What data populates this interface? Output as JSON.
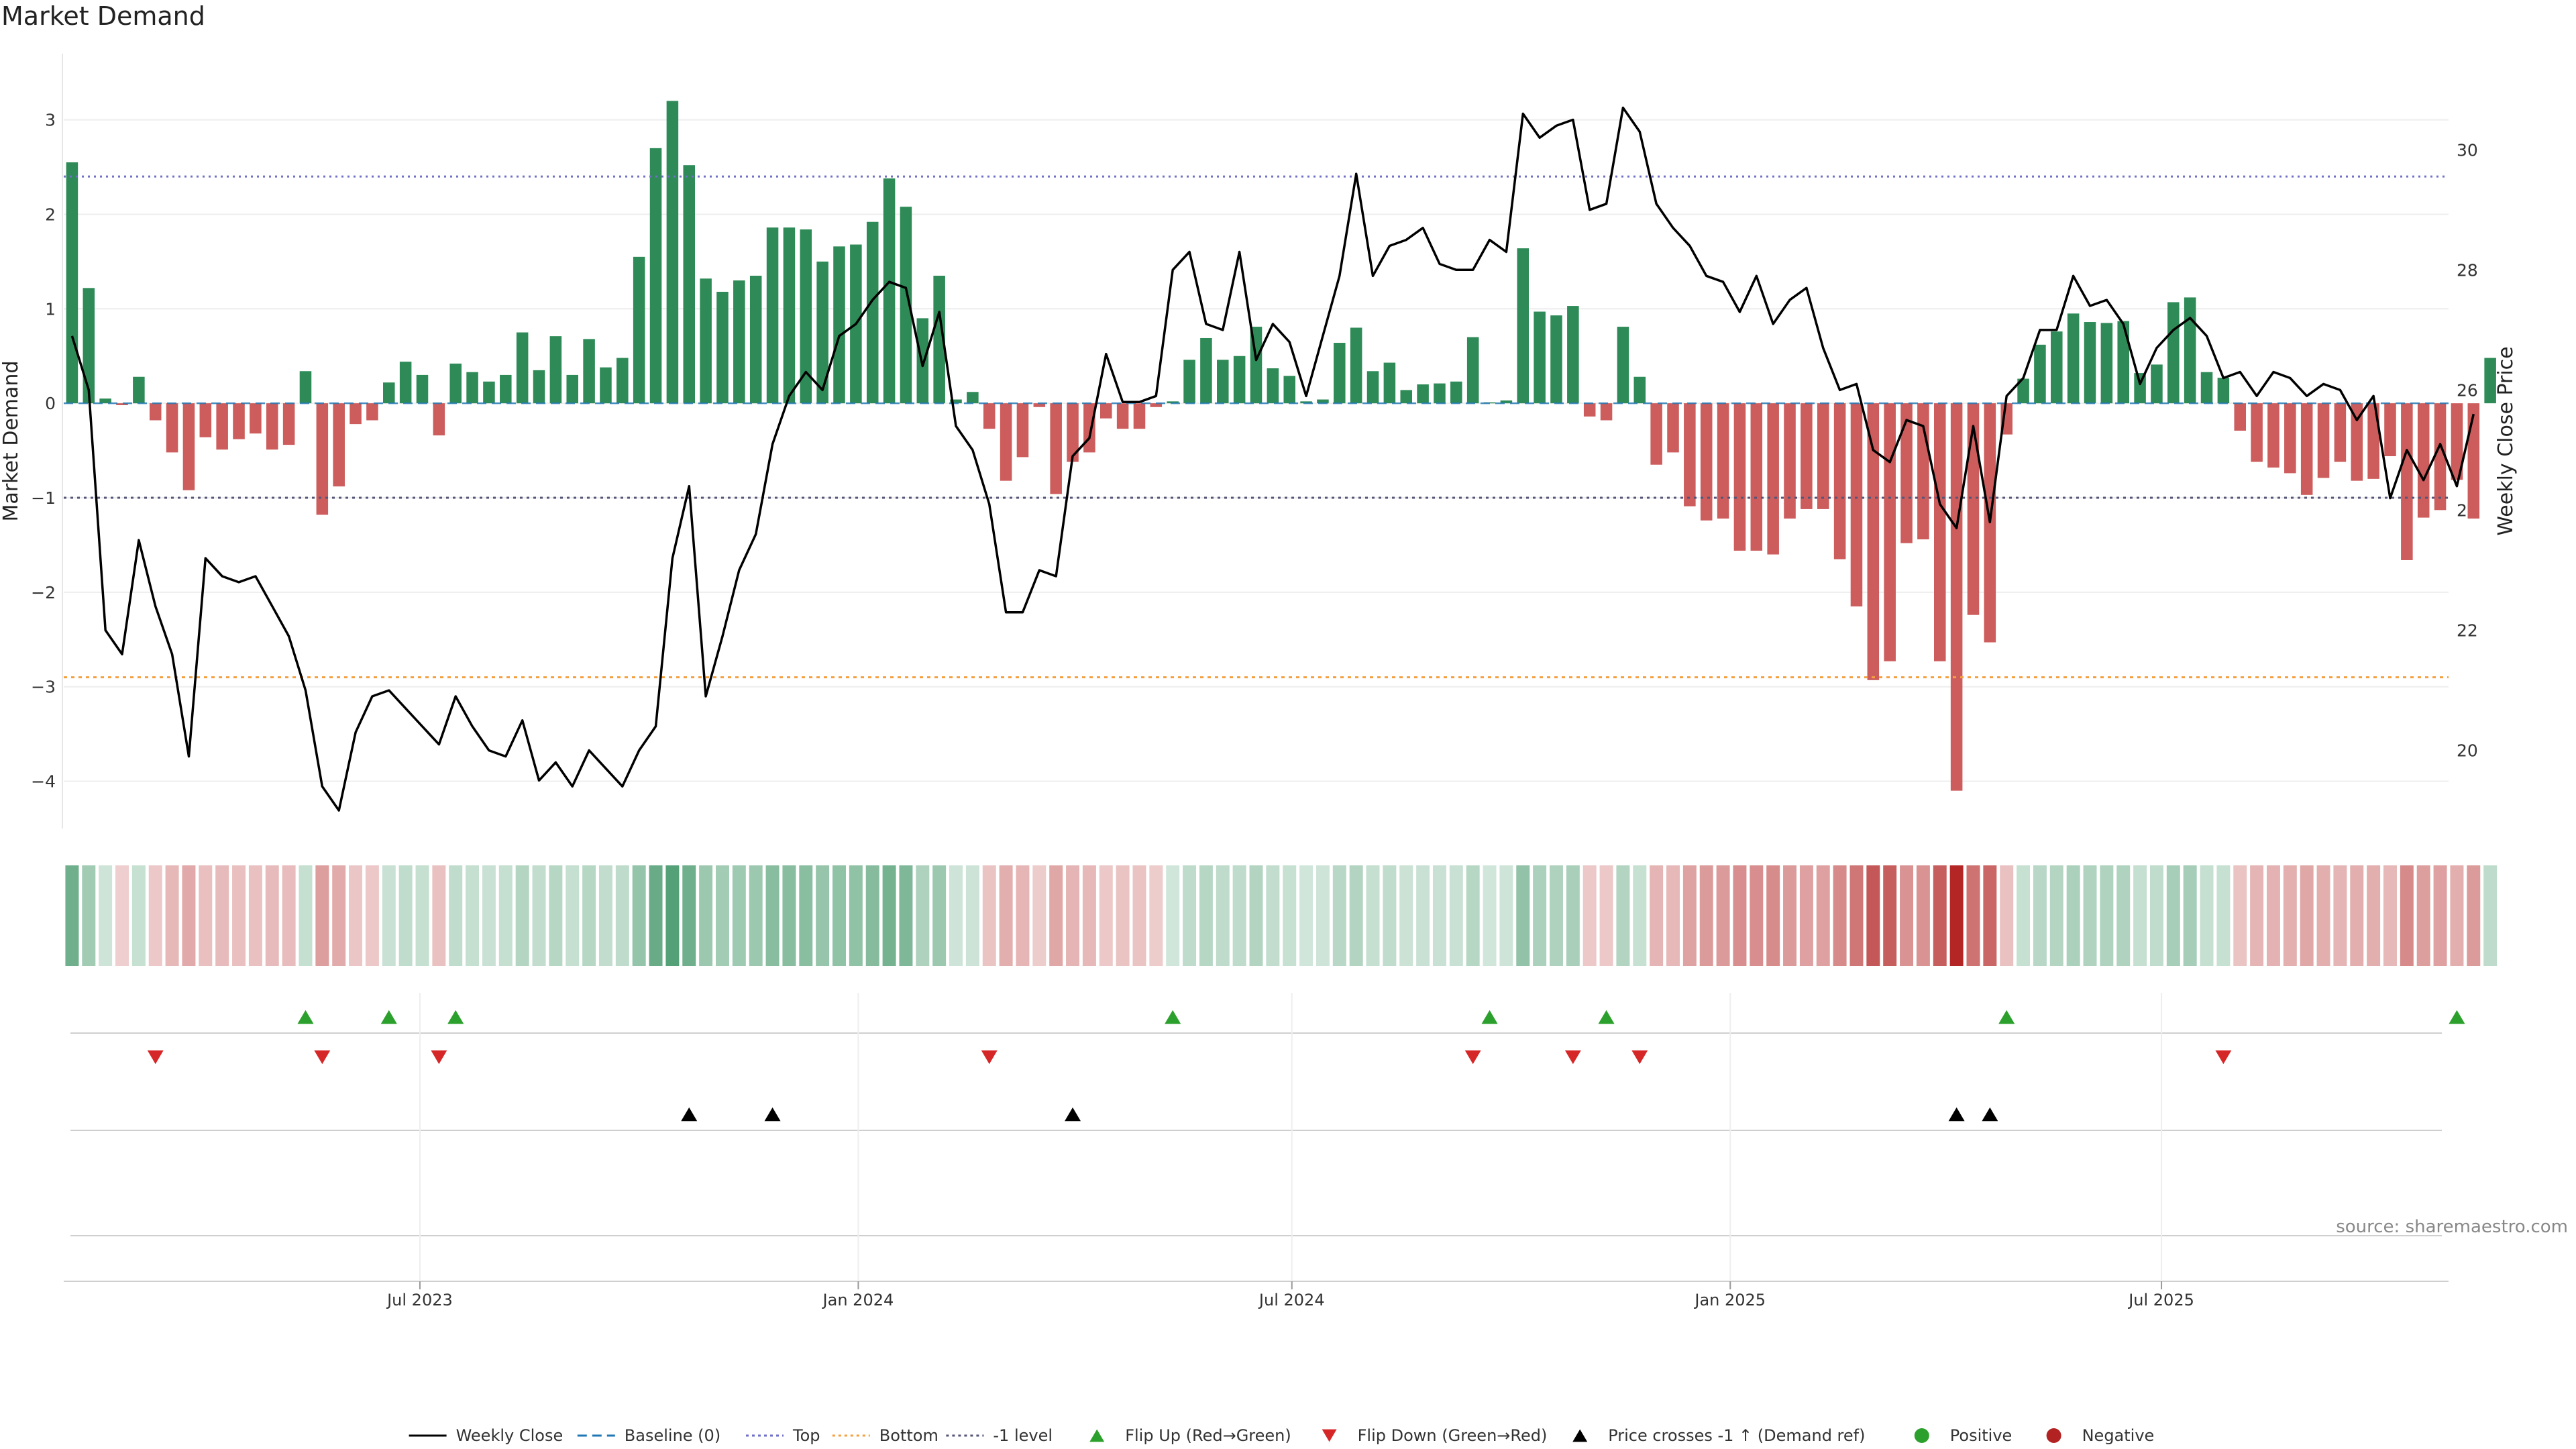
{
  "title": "Market Demand",
  "source": "source: sharemaestro.com",
  "colors": {
    "positive": "#2e8b57",
    "negative": "#cd5c5c",
    "line": "#000000",
    "top": "#7070c8",
    "bottom": "#f5a040",
    "minus1": "#555577",
    "baseline": "#1f77b4",
    "flip_up": "#2ca02c",
    "flip_down": "#d62728",
    "cross": "#000000",
    "pos_dot": "#2ca02c",
    "neg_dot": "#b22222"
  },
  "chart_data": {
    "type": "bar",
    "title": "Market Demand",
    "ylabel": "Market Demand",
    "y2label": "Weekly Close Price",
    "ylim": [
      -4.5,
      3.7
    ],
    "y2lim": [
      18.7,
      31.6
    ],
    "yticks": [
      -4,
      -3,
      -2,
      -1,
      0,
      1,
      2,
      3
    ],
    "y2ticks": [
      20,
      22,
      24,
      26,
      28,
      30
    ],
    "x_start": "2023-02-05",
    "week_days": 7,
    "x_end": "2025-10-26",
    "xticks": [
      {
        "date": "2023-07-01",
        "label": "Jul 2023"
      },
      {
        "date": "2024-01-01",
        "label": "Jan 2024"
      },
      {
        "date": "2024-07-01",
        "label": "Jul 2024"
      },
      {
        "date": "2025-01-01",
        "label": "Jan 2025"
      },
      {
        "date": "2025-07-01",
        "label": "Jul 2025"
      }
    ],
    "reference_lines": {
      "top": 2.4,
      "bottom": -2.9,
      "minus1": -1.0,
      "baseline": 0
    },
    "series": [
      {
        "name": "Market Demand",
        "values": [
          2.55,
          1.22,
          0.05,
          -0.02,
          0.28,
          -0.18,
          -0.52,
          -0.92,
          -0.36,
          -0.49,
          -0.38,
          -0.32,
          -0.49,
          -0.44,
          0.34,
          -1.18,
          -0.88,
          -0.22,
          -0.18,
          0.22,
          0.44,
          0.3,
          -0.34,
          0.42,
          0.33,
          0.23,
          0.3,
          0.75,
          0.35,
          0.71,
          0.3,
          0.68,
          0.38,
          0.48,
          1.55,
          2.7,
          3.2,
          2.52,
          1.32,
          1.18,
          1.3,
          1.35,
          1.86,
          1.86,
          1.84,
          1.5,
          1.66,
          1.68,
          1.92,
          2.38,
          2.08,
          0.9,
          1.35,
          0.04,
          0.12,
          -0.27,
          -0.82,
          -0.57,
          -0.04,
          -0.96,
          -0.62,
          -0.52,
          -0.16,
          -0.27,
          -0.27,
          -0.04,
          0.02,
          0.46,
          0.69,
          0.46,
          0.5,
          0.81,
          0.37,
          0.29,
          0.02,
          0.04,
          0.64,
          0.8,
          0.34,
          0.43,
          0.14,
          0.2,
          0.21,
          0.23,
          0.7,
          0.01,
          0.03,
          1.64,
          0.97,
          0.93,
          1.03,
          -0.14,
          -0.18,
          0.81,
          0.28,
          -0.65,
          -0.52,
          -1.09,
          -1.24,
          -1.22,
          -1.56,
          -1.56,
          -1.6,
          -1.22,
          -1.12,
          -1.12,
          -1.65,
          -2.15,
          -2.93,
          -2.73,
          -1.48,
          -1.44,
          -2.73,
          -4.1,
          -2.24,
          -2.53,
          -0.33,
          0.26,
          0.62,
          0.76,
          0.95,
          0.86,
          0.85,
          0.87,
          0.32,
          0.41,
          1.07,
          1.12,
          0.33,
          0.27,
          -0.29,
          -0.62,
          -0.68,
          -0.74,
          -0.97,
          -0.79,
          -0.62,
          -0.82,
          -0.8,
          -0.56,
          -1.66,
          -1.21,
          -1.13,
          -0.81,
          -1.22,
          0.48
        ]
      },
      {
        "name": "Weekly Close",
        "values": [
          26.9,
          26.0,
          22.0,
          21.6,
          23.5,
          22.4,
          21.6,
          19.9,
          23.2,
          22.9,
          22.8,
          22.9,
          22.4,
          21.9,
          21.0,
          19.4,
          19.0,
          20.3,
          20.9,
          21.0,
          20.7,
          20.4,
          20.1,
          20.9,
          20.4,
          20.0,
          19.9,
          20.5,
          19.5,
          19.8,
          19.4,
          20.0,
          19.7,
          19.4,
          20.0,
          20.4,
          23.2,
          24.4,
          20.9,
          21.9,
          23.0,
          23.6,
          25.1,
          25.9,
          26.3,
          26.0,
          26.9,
          27.1,
          27.5,
          27.8,
          27.7,
          26.4,
          27.3,
          25.4,
          25.0,
          24.1,
          22.3,
          22.3,
          23.0,
          22.9,
          24.9,
          25.2,
          26.6,
          25.8,
          25.8,
          25.9,
          28.0,
          28.3,
          27.1,
          27.0,
          28.3,
          26.5,
          27.1,
          26.8,
          25.9,
          26.9,
          27.9,
          29.6,
          27.9,
          28.4,
          28.5,
          28.7,
          28.1,
          28.0,
          28.0,
          28.5,
          28.3,
          30.6,
          30.2,
          30.4,
          30.5,
          29.0,
          29.1,
          30.7,
          30.3,
          29.1,
          28.7,
          28.4,
          27.9,
          27.8,
          27.3,
          27.9,
          27.1,
          27.5,
          27.7,
          26.7,
          26.0,
          26.1,
          25.0,
          24.8,
          25.5,
          25.4,
          24.1,
          23.7,
          25.4,
          23.8,
          25.9,
          26.2,
          27.0,
          27.0,
          27.9,
          27.4,
          27.5,
          27.1,
          26.1,
          26.7,
          27.0,
          27.2,
          26.9,
          26.2,
          26.3,
          25.9,
          26.3,
          26.2,
          25.9,
          26.1,
          26.0,
          25.5,
          25.9,
          24.2,
          25.0,
          24.5,
          25.1,
          24.4,
          25.6
        ]
      }
    ],
    "heat_strip": "same values as Market Demand, shaded by sign and magnitude",
    "flip_up_weeks": [
      14,
      19,
      23,
      66,
      85,
      92,
      116,
      143
    ],
    "flip_down_weeks": [
      5,
      15,
      22,
      55,
      84,
      90,
      94,
      129
    ],
    "cross_weeks": [
      37,
      42,
      60,
      113,
      115
    ],
    "legend": [
      {
        "label": "Weekly Close",
        "kind": "line-solid",
        "color": "#000000"
      },
      {
        "label": "Baseline (0)",
        "kind": "line-dash",
        "color": "#1f77b4"
      },
      {
        "label": "Top",
        "kind": "line-dot",
        "color": "#7070c8"
      },
      {
        "label": "Bottom",
        "kind": "line-dot",
        "color": "#f5a040"
      },
      {
        "label": "-1 level",
        "kind": "line-dot",
        "color": "#555577"
      },
      {
        "label": "Flip Up (Red→Green)",
        "kind": "tri-up",
        "color": "#2ca02c"
      },
      {
        "label": "Flip Down (Green→Red)",
        "kind": "tri-down",
        "color": "#d62728"
      },
      {
        "label": "Price crosses -1 ↑ (Demand ref)",
        "kind": "tri-up",
        "color": "#000000"
      },
      {
        "label": "Positive",
        "kind": "dot",
        "color": "#2ca02c"
      },
      {
        "label": "Negative",
        "kind": "dot",
        "color": "#b22222"
      }
    ],
    "legend_position": "bottom-center"
  }
}
